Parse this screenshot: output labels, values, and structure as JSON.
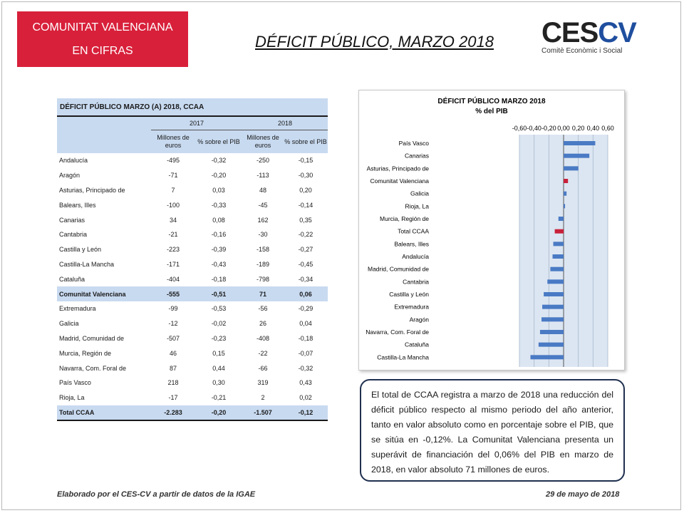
{
  "badge": {
    "line1": "COMUNITAT VALENCIANA",
    "line2": "EN CIFRAS"
  },
  "page_title": "DÉFICIT PÚBLICO, MARZO 2018",
  "logo": {
    "mark_left": "CES",
    "mark_right": "CV",
    "subtitle": "Comitè Econòmic i Social"
  },
  "table": {
    "title": "DÉFICIT PÚBLICO MARZO (A) 2018, CCAA",
    "years": [
      "2017",
      "2018"
    ],
    "subheaders": [
      "Millones de euros",
      "% sobre el PIB",
      "Millones de euros",
      "% sobre el PIB"
    ],
    "rows": [
      [
        "Andalucía",
        "-495",
        "-0,32",
        "-250",
        "-0,15"
      ],
      [
        "Aragón",
        "-71",
        "-0,20",
        "-113",
        "-0,30"
      ],
      [
        "Asturias, Principado de",
        "7",
        "0,03",
        "48",
        "0,20"
      ],
      [
        "Balears, Illes",
        "-100",
        "-0,33",
        "-45",
        "-0,14"
      ],
      [
        "Canarias",
        "34",
        "0,08",
        "162",
        "0,35"
      ],
      [
        "Cantabria",
        "-21",
        "-0,16",
        "-30",
        "-0,22"
      ],
      [
        "Castilla y León",
        "-223",
        "-0,39",
        "-158",
        "-0,27"
      ],
      [
        "Castilla-La Mancha",
        "-171",
        "-0,43",
        "-189",
        "-0,45"
      ],
      [
        "Cataluña",
        "-404",
        "-0,18",
        "-798",
        "-0,34"
      ],
      [
        "Comunitat Valenciana",
        "-555",
        "-0,51",
        "71",
        "0,06"
      ],
      [
        "Extremadura",
        "-99",
        "-0,53",
        "-56",
        "-0,29"
      ],
      [
        "Galicia",
        "-12",
        "-0,02",
        "26",
        "0,04"
      ],
      [
        "Madrid, Comunidad de",
        "-507",
        "-0,23",
        "-408",
        "-0,18"
      ],
      [
        "Murcia, Región de",
        "46",
        "0,15",
        "-22",
        "-0,07"
      ],
      [
        "Navarra, Com. Foral de",
        "87",
        "0,44",
        "-66",
        "-0,32"
      ],
      [
        "País Vasco",
        "218",
        "0,30",
        "319",
        "0,43"
      ],
      [
        "Rioja, La",
        "-17",
        "-0,21",
        "2",
        "0,02"
      ],
      [
        "Total CCAA",
        "-2.283",
        "-0,20",
        "-1.507",
        "-0,12"
      ]
    ]
  },
  "chart_data": {
    "type": "bar",
    "orientation": "horizontal",
    "title": "DÉFICIT PÚBLICO MARZO 2018",
    "subtitle": "% del PIB",
    "xlim": [
      -0.6,
      0.6
    ],
    "xticks": [
      "-0,60",
      "-0,40",
      "-0,20",
      "0,00",
      "0,20",
      "0,40",
      "0,60"
    ],
    "grid": true,
    "categories": [
      "País Vasco",
      "Canarias",
      "Asturias, Principado de",
      "Comunitat Valenciana",
      "Galicia",
      "Rioja, La",
      "Murcia, Región de",
      "Total CCAA",
      "Balears, Illes",
      "Andalucía",
      "Madrid, Comunidad de",
      "Cantabria",
      "Castilla y León",
      "Extremadura",
      "Aragón",
      "Navarra, Com. Foral de",
      "Cataluña",
      "Castilla-La Mancha"
    ],
    "values": [
      0.43,
      0.35,
      0.2,
      0.06,
      0.04,
      0.02,
      -0.07,
      -0.12,
      -0.14,
      -0.15,
      -0.18,
      -0.22,
      -0.27,
      -0.29,
      -0.3,
      -0.32,
      -0.34,
      -0.45
    ],
    "highlight": [
      "Comunitat Valenciana",
      "Total CCAA"
    ],
    "colors": {
      "default": "#4a7ac4",
      "highlight": "#c8203a",
      "plot_bg": "#dce6f2"
    }
  },
  "summary_text": "El total de CCAA registra a marzo de 2018 una reducción del déficit público respecto al mismo periodo del año anterior, tanto en valor absoluto como en porcentaje sobre el PIB, que se sitúa en -0,12%. La Comunitat Valenciana presenta un superávit de financiación del 0,06% del PIB en marzo de 2018, en valor absoluto 71 millones de euros.",
  "footer": {
    "left": "Elaborado por el CES-CV a partir de datos de la IGAE",
    "right": "29 de mayo de 2018"
  }
}
